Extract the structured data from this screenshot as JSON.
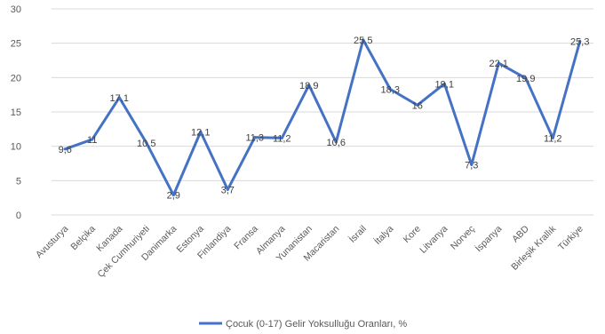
{
  "chart_data": {
    "type": "line",
    "categories": [
      "Avusturya",
      "Belçika",
      "Kanada",
      "Çek Cumhuriyeti",
      "Danimarka",
      "Estonya",
      "Finlandiya",
      "Fransa",
      "Almanya",
      "Yunanistan",
      "Macaristan",
      "İsrail",
      "İtalya",
      "Kore",
      "Litvanya",
      "Norveç",
      "İspanya",
      "ABD",
      "Birleşik Krallık",
      "Türkiye"
    ],
    "series": [
      {
        "name": "Çocuk (0-17) Gelir Yoksulluğu Oranları, %",
        "values": [
          9.6,
          11,
          17.1,
          10.5,
          2.9,
          12.1,
          3.7,
          11.3,
          11.2,
          18.9,
          10.6,
          25.5,
          18.3,
          16,
          19.1,
          7.3,
          22.1,
          19.9,
          11.2,
          25.3
        ],
        "labels": [
          "9,6",
          "11",
          "17,1",
          "10,5",
          "2,9",
          "12,1",
          "3,7",
          "11,3",
          "11,2",
          "18,9",
          "10,6",
          "25,5",
          "18,3",
          "16",
          "19,1",
          "7,3",
          "22,1",
          "19,9",
          "11,2",
          "25,3"
        ],
        "color": "#4472c4"
      }
    ],
    "ylim": [
      0,
      30
    ],
    "yticks": [
      0,
      5,
      10,
      15,
      20,
      25,
      30
    ],
    "grid": true,
    "legend_position": "bottom",
    "title": "",
    "xlabel": "",
    "ylabel": ""
  }
}
